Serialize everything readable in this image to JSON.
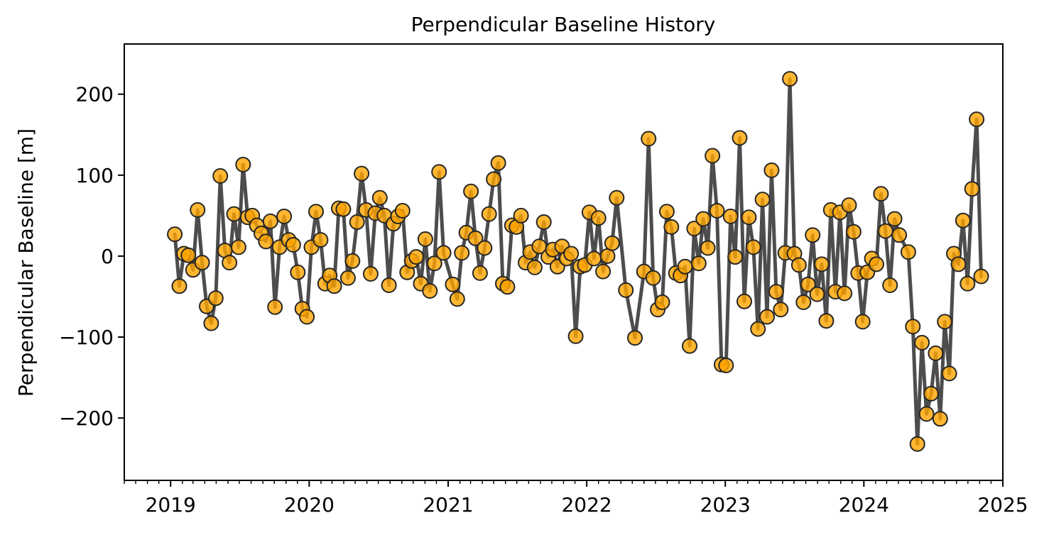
{
  "chart_data": {
    "type": "line",
    "title": "Perpendicular Baseline History",
    "xlabel": "",
    "ylabel": "Perpendicular Baseline [m]",
    "xlim": [
      "2018-09-01",
      "2025-01-01"
    ],
    "ylim": [
      -277,
      262
    ],
    "x_ticks": [
      "2019",
      "2020",
      "2021",
      "2022",
      "2023",
      "2024",
      "2025"
    ],
    "y_ticks": [
      -200,
      -100,
      0,
      100,
      200
    ],
    "y_tick_labels": [
      "−200",
      "−100",
      "0",
      "100",
      "200"
    ],
    "grid": false,
    "legend": "none",
    "colors": {
      "line": "#4d4d4d",
      "marker_fill": "#ffa500",
      "marker_edge": "#262626"
    },
    "series": [
      {
        "x": [
          "2019-01-12",
          "2019-01-24",
          "2019-02-05",
          "2019-02-17",
          "2019-03-01",
          "2019-03-13",
          "2019-03-25",
          "2019-04-06",
          "2019-04-18",
          "2019-04-30",
          "2019-05-12",
          "2019-05-24",
          "2019-06-05",
          "2019-06-17",
          "2019-06-29",
          "2019-07-11",
          "2019-07-23",
          "2019-08-04",
          "2019-08-16",
          "2019-08-28",
          "2019-09-09",
          "2019-09-21",
          "2019-10-03",
          "2019-10-15",
          "2019-10-27",
          "2019-11-08",
          "2019-11-20",
          "2019-12-02",
          "2019-12-14",
          "2019-12-26",
          "2020-01-07",
          "2020-01-19",
          "2020-01-31",
          "2020-02-12",
          "2020-02-24",
          "2020-03-07",
          "2020-03-19",
          "2020-03-31",
          "2020-04-12",
          "2020-04-24",
          "2020-05-06",
          "2020-05-18",
          "2020-05-30",
          "2020-06-11",
          "2020-06-23",
          "2020-07-05",
          "2020-07-17",
          "2020-07-29",
          "2020-08-10",
          "2020-08-22",
          "2020-09-03",
          "2020-09-15",
          "2020-09-27",
          "2020-10-09",
          "2020-10-21",
          "2020-11-02",
          "2020-11-14",
          "2020-11-26",
          "2020-12-08",
          "2020-12-20",
          "2021-01-13",
          "2021-01-25",
          "2021-02-06",
          "2021-02-18",
          "2021-03-02",
          "2021-03-14",
          "2021-03-26",
          "2021-04-07",
          "2021-04-19",
          "2021-05-01",
          "2021-05-13",
          "2021-05-25",
          "2021-06-06",
          "2021-06-18",
          "2021-06-30",
          "2021-07-12",
          "2021-07-24",
          "2021-08-05",
          "2021-08-17",
          "2021-08-29",
          "2021-09-10",
          "2021-09-22",
          "2021-10-04",
          "2021-10-16",
          "2021-10-28",
          "2021-11-09",
          "2021-11-21",
          "2021-12-03",
          "2021-12-15",
          "2021-12-27",
          "2022-01-08",
          "2022-01-20",
          "2022-02-01",
          "2022-02-13",
          "2022-02-25",
          "2022-03-09",
          "2022-03-21",
          "2022-04-14",
          "2022-05-08",
          "2022-06-01",
          "2022-06-13",
          "2022-06-25",
          "2022-07-07",
          "2022-07-19",
          "2022-07-31",
          "2022-08-12",
          "2022-08-24",
          "2022-09-05",
          "2022-09-17",
          "2022-09-29",
          "2022-10-11",
          "2022-10-23",
          "2022-11-04",
          "2022-11-16",
          "2022-11-28",
          "2022-12-10",
          "2022-12-22",
          "2023-01-03",
          "2023-01-15",
          "2023-01-27",
          "2023-02-08",
          "2023-02-20",
          "2023-03-04",
          "2023-03-16",
          "2023-03-28",
          "2023-04-09",
          "2023-04-21",
          "2023-05-03",
          "2023-05-15",
          "2023-05-27",
          "2023-06-08",
          "2023-06-20",
          "2023-07-02",
          "2023-07-14",
          "2023-07-26",
          "2023-08-07",
          "2023-08-19",
          "2023-08-31",
          "2023-09-12",
          "2023-09-24",
          "2023-10-06",
          "2023-10-18",
          "2023-10-30",
          "2023-11-11",
          "2023-11-23",
          "2023-12-05",
          "2023-12-17",
          "2023-12-29",
          "2024-01-10",
          "2024-01-22",
          "2024-02-03",
          "2024-02-15",
          "2024-02-27",
          "2024-03-10",
          "2024-03-22",
          "2024-04-03",
          "2024-04-27",
          "2024-05-09",
          "2024-05-21",
          "2024-06-02",
          "2024-06-14",
          "2024-06-26",
          "2024-07-08",
          "2024-07-20",
          "2024-08-01",
          "2024-08-13",
          "2024-08-25",
          "2024-09-06",
          "2024-09-18",
          "2024-09-30",
          "2024-10-12",
          "2024-10-24",
          "2024-11-05"
        ],
        "y": [
          27,
          -37,
          3,
          1,
          -17,
          57,
          -8,
          -62,
          -83,
          -52,
          99,
          7,
          -8,
          52,
          11,
          113,
          48,
          50,
          38,
          28,
          18,
          43,
          -63,
          11,
          49,
          20,
          14,
          -20,
          -65,
          -75,
          11,
          55,
          20,
          -34,
          -24,
          -37,
          59,
          58,
          -27,
          -6,
          42,
          102,
          57,
          -22,
          53,
          72,
          50,
          -36,
          40,
          49,
          56,
          -20,
          -6,
          -1,
          -34,
          21,
          -43,
          -9,
          104,
          4,
          -35,
          -53,
          4,
          29,
          80,
          22,
          -21,
          10,
          52,
          95,
          115,
          -34,
          -38,
          38,
          36,
          50,
          -8,
          5,
          -14,
          12,
          42,
          -1,
          8,
          -13,
          12,
          -3,
          3,
          -99,
          -13,
          -11,
          54,
          -3,
          47,
          -19,
          0,
          16,
          72,
          -42,
          -101,
          -19,
          145,
          -27,
          -66,
          -57,
          55,
          36,
          -21,
          -24,
          -13,
          -111,
          34,
          -9,
          46,
          10,
          124,
          56,
          -134,
          -135,
          49,
          -1,
          146,
          -56,
          48,
          11,
          -90,
          70,
          -75,
          106,
          -44,
          -66,
          4,
          219,
          3,
          -11,
          -57,
          -35,
          26,
          -47,
          -10,
          -80,
          57,
          -44,
          54,
          -46,
          63,
          30,
          -21,
          -81,
          -20,
          -3,
          -10,
          77,
          31,
          -36,
          46,
          26,
          5,
          -87,
          -232,
          -107,
          -195,
          -170,
          -120,
          -201,
          -81,
          -145,
          3,
          -10,
          44,
          -34,
          83,
          169,
          -25
        ]
      }
    ]
  }
}
